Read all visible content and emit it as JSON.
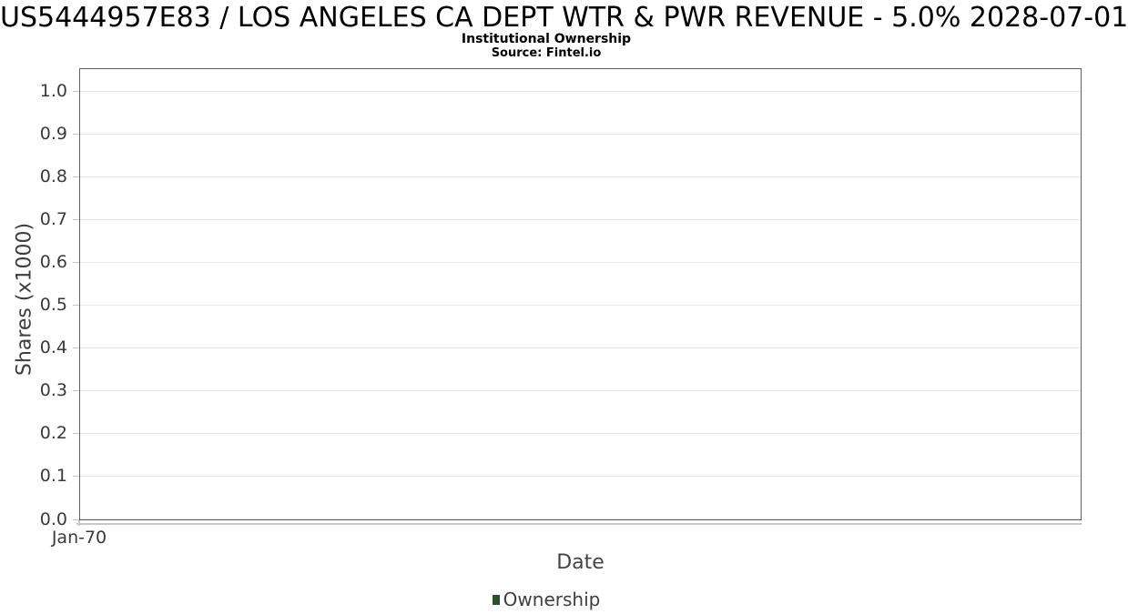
{
  "header": {
    "title": "US5444957E83 / LOS ANGELES CA DEPT WTR & PWR REVENUE - 5.0% 2028-07-01",
    "subtitle": "Institutional Ownership",
    "source": "Source: Fintel.io"
  },
  "chart_data": {
    "type": "line",
    "title": "US5444957E83 / LOS ANGELES CA DEPT WTR & PWR REVENUE - 5.0% 2028-07-01",
    "subtitle": "Institutional Ownership",
    "source": "Source: Fintel.io",
    "xlabel": "Date",
    "ylabel": "Shares (x1000)",
    "ylim": [
      0.0,
      1.05
    ],
    "yticks": [
      0.0,
      0.1,
      0.2,
      0.3,
      0.4,
      0.5,
      0.6,
      0.7,
      0.8,
      0.9,
      1.0
    ],
    "ytick_labels": [
      "0.0",
      "0.1",
      "0.2",
      "0.3",
      "0.4",
      "0.5",
      "0.6",
      "0.7",
      "0.8",
      "0.9",
      "1.0"
    ],
    "xticks": [
      "Jan-70"
    ],
    "grid": true,
    "legend": {
      "position": "bottom-center",
      "entries": [
        {
          "label": "Ownership",
          "color": "#27522c"
        }
      ]
    },
    "series": [
      {
        "name": "Ownership",
        "x": [],
        "values": []
      }
    ],
    "colors": {
      "legend_marker": "#27522c",
      "gridline": "#e7e7e7",
      "plot_border": "#5f5f5f",
      "background": "#ffffff"
    }
  }
}
